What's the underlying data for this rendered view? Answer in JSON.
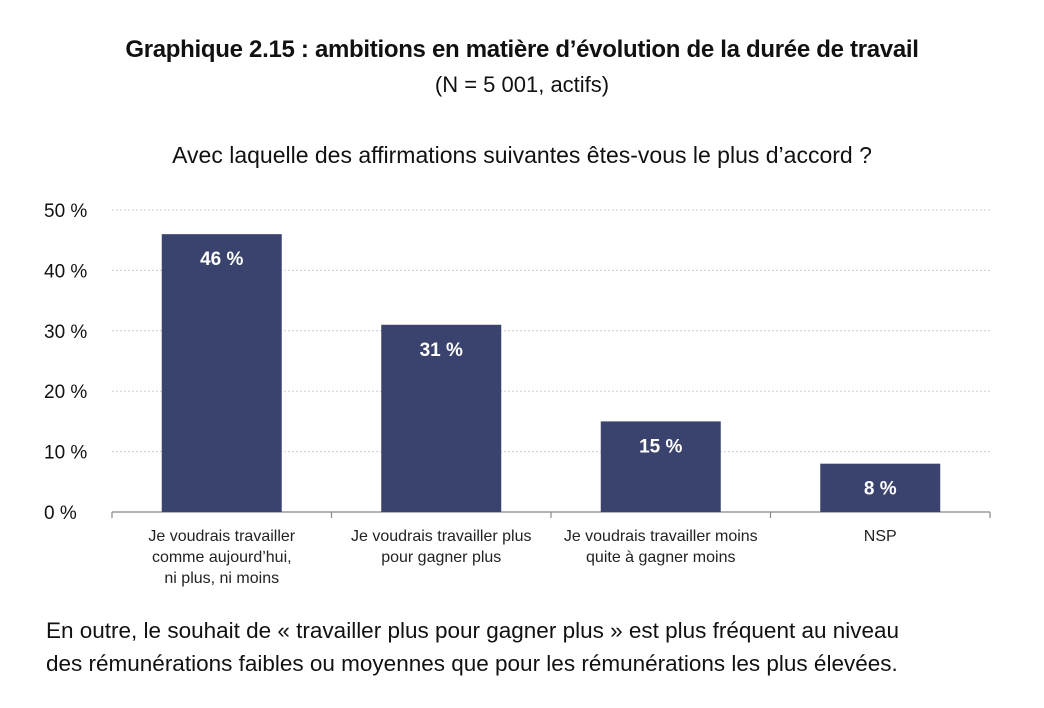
{
  "header": {
    "title": "Graphique 2.15 : ambitions en matière d’évolution de la durée de travail",
    "subtitle": "(N = 5 001, actifs)",
    "question": "Avec laquelle des affirmations suivantes êtes-vous le plus d’accord ?"
  },
  "chart_data": {
    "type": "bar",
    "title": "Avec laquelle des affirmations suivantes êtes-vous le plus d’accord ?",
    "categories": [
      [
        "Je voudrais travailler",
        "comme aujourd’hui,",
        "ni plus, ni moins"
      ],
      [
        "Je voudrais travailler plus",
        "pour gagner plus"
      ],
      [
        "Je voudrais travailler moins",
        "quite à gagner moins"
      ],
      [
        "NSP"
      ]
    ],
    "values": [
      46,
      31,
      15,
      8
    ],
    "value_labels": [
      "46 %",
      "31 %",
      "15 %",
      "8 %"
    ],
    "y_ticks": [
      0,
      10,
      20,
      30,
      40,
      50
    ],
    "y_tick_labels": [
      "0 %",
      "10 %",
      "20 %",
      "30 %",
      "40 %",
      "50 %"
    ],
    "ylim": [
      0,
      50
    ],
    "xlabel": "",
    "ylabel": "",
    "grid": true,
    "bar_color": "#3a436d",
    "value_label_color": "#ffffff"
  },
  "footer": {
    "note_line1": "En outre, le souhait de « travailler plus pour gagner plus » est plus fréquent au niveau",
    "note_line2": "des rémunérations faibles ou moyennes que pour les rémunérations les plus élevées."
  }
}
